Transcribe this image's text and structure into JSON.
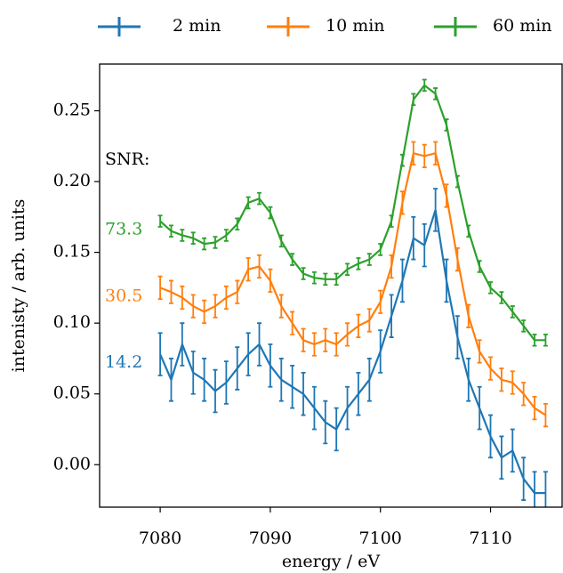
{
  "chart_data": {
    "type": "line",
    "xlabel": "energy / eV",
    "ylabel": "intenisty / arb. units",
    "xlim": [
      7074.5,
      7116.5
    ],
    "ylim": [
      -0.03,
      0.283
    ],
    "xticks": [
      7080,
      7090,
      7100,
      7110
    ],
    "yticks": [
      {
        "value": 0,
        "label": "0.00"
      },
      0.05,
      {
        "value": 0.1,
        "label": "0.10"
      },
      0.15,
      {
        "value": 0.2,
        "label": "0.20"
      },
      0.25
    ],
    "legend": "top",
    "snr_label": "SNR:",
    "x": [
      7080,
      7081,
      7082,
      7083,
      7084,
      7085,
      7086,
      7087,
      7088,
      7089,
      7090,
      7091,
      7092,
      7093,
      7094,
      7095,
      7096,
      7097,
      7098,
      7099,
      7100,
      7101,
      7102,
      7103,
      7104,
      7105,
      7106,
      7107,
      7108,
      7109,
      7110,
      7111,
      7112,
      7113,
      7114,
      7115
    ],
    "series": [
      {
        "name": "2 min",
        "color": "#1f77b4",
        "snr": "14.2",
        "values": [
          0.078,
          0.06,
          0.085,
          0.065,
          0.06,
          0.052,
          0.058,
          0.068,
          0.078,
          0.085,
          0.07,
          0.06,
          0.055,
          0.05,
          0.04,
          0.03,
          0.025,
          0.04,
          0.05,
          0.06,
          0.08,
          0.105,
          0.13,
          0.16,
          0.155,
          0.18,
          0.13,
          0.09,
          0.06,
          0.04,
          0.02,
          0.005,
          0.01,
          -0.01,
          -0.02,
          -0.02
        ],
        "errors": [
          0.015,
          0.015,
          0.015,
          0.015,
          0.015,
          0.015,
          0.015,
          0.015,
          0.015,
          0.015,
          0.015,
          0.015,
          0.015,
          0.015,
          0.015,
          0.015,
          0.015,
          0.015,
          0.015,
          0.015,
          0.015,
          0.015,
          0.015,
          0.015,
          0.015,
          0.015,
          0.015,
          0.015,
          0.015,
          0.015,
          0.015,
          0.015,
          0.015,
          0.015,
          0.015,
          0.015
        ]
      },
      {
        "name": "10 min",
        "color": "#ff7f0e",
        "snr": "30.5",
        "values": [
          0.125,
          0.122,
          0.118,
          0.112,
          0.108,
          0.112,
          0.118,
          0.122,
          0.138,
          0.14,
          0.13,
          0.112,
          0.1,
          0.088,
          0.085,
          0.088,
          0.085,
          0.092,
          0.098,
          0.102,
          0.115,
          0.14,
          0.185,
          0.22,
          0.218,
          0.22,
          0.19,
          0.145,
          0.105,
          0.08,
          0.068,
          0.06,
          0.058,
          0.05,
          0.04,
          0.035
        ],
        "errors": [
          0.008,
          0.008,
          0.008,
          0.008,
          0.008,
          0.008,
          0.008,
          0.008,
          0.008,
          0.008,
          0.008,
          0.008,
          0.008,
          0.008,
          0.008,
          0.008,
          0.008,
          0.008,
          0.008,
          0.008,
          0.008,
          0.008,
          0.008,
          0.008,
          0.008,
          0.008,
          0.008,
          0.008,
          0.008,
          0.008,
          0.008,
          0.008,
          0.008,
          0.008,
          0.008,
          0.008
        ]
      },
      {
        "name": "60 min",
        "color": "#2ca02c",
        "snr": "73.3",
        "values": [
          0.172,
          0.165,
          0.162,
          0.16,
          0.156,
          0.157,
          0.162,
          0.17,
          0.185,
          0.188,
          0.178,
          0.158,
          0.145,
          0.135,
          0.132,
          0.131,
          0.131,
          0.138,
          0.142,
          0.145,
          0.152,
          0.172,
          0.215,
          0.258,
          0.268,
          0.262,
          0.24,
          0.2,
          0.165,
          0.14,
          0.125,
          0.118,
          0.108,
          0.098,
          0.088,
          0.088
        ],
        "errors": [
          0.004,
          0.004,
          0.004,
          0.004,
          0.004,
          0.004,
          0.004,
          0.004,
          0.004,
          0.004,
          0.004,
          0.004,
          0.004,
          0.004,
          0.004,
          0.004,
          0.004,
          0.004,
          0.004,
          0.004,
          0.004,
          0.004,
          0.004,
          0.004,
          0.004,
          0.004,
          0.004,
          0.004,
          0.004,
          0.004,
          0.004,
          0.004,
          0.004,
          0.004,
          0.004,
          0.004
        ]
      }
    ]
  }
}
